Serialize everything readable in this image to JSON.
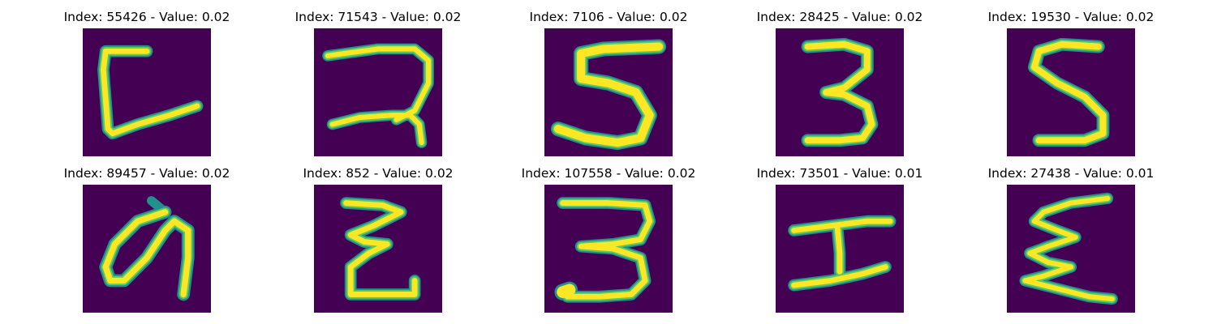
{
  "grid": {
    "items": [
      {
        "title": "Index: 55426 - Value: 0.02"
      },
      {
        "title": "Index: 71543 - Value: 0.02"
      },
      {
        "title": "Index: 7106 - Value: 0.02"
      },
      {
        "title": "Index: 28425 - Value: 0.02"
      },
      {
        "title": "Index: 19530 - Value: 0.02"
      },
      {
        "title": "Index: 89457 - Value: 0.02"
      },
      {
        "title": "Index: 852 - Value: 0.02"
      },
      {
        "title": "Index: 107558 - Value: 0.02"
      },
      {
        "title": "Index: 73501 - Value: 0.01"
      },
      {
        "title": "Index: 27438 - Value: 0.01"
      }
    ]
  },
  "colors": {
    "background": "#440154",
    "stroke_outer": "#21918c",
    "stroke_mid": "#5ec962",
    "stroke_core": "#fde725"
  }
}
